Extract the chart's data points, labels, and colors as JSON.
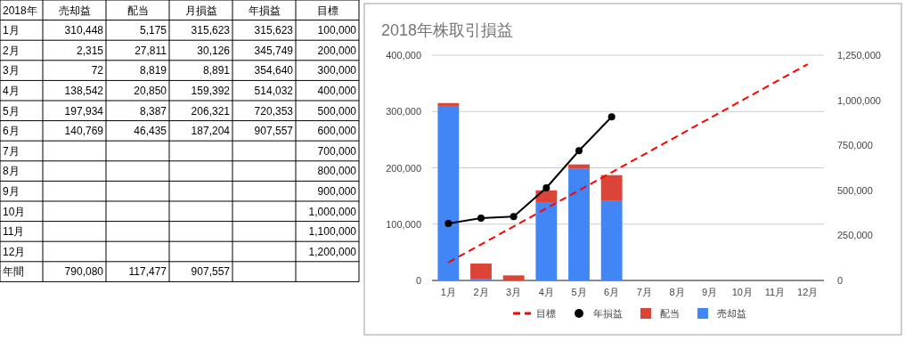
{
  "chart_data": [
    {
      "type": "heatmap",
      "categories": [
        "売却益",
        "配当",
        "月損益",
        "年損益",
        "目標"
      ],
      "y_categories": [
        "1月",
        "2月",
        "3月",
        "4月",
        "5月",
        "6月",
        "7月",
        "8月",
        "9月",
        "10月",
        "11月",
        "12月",
        "年間"
      ],
      "cells": [
        [
          310448,
          5175,
          315623,
          315623,
          100000
        ],
        [
          2315,
          27811,
          30126,
          345749,
          200000
        ],
        [
          72,
          8819,
          8891,
          354640,
          300000
        ],
        [
          138542,
          20850,
          159392,
          514032,
          400000
        ],
        [
          197934,
          8387,
          206321,
          720353,
          500000
        ],
        [
          140769,
          46435,
          187204,
          907557,
          600000
        ],
        [
          null,
          null,
          null,
          null,
          700000
        ],
        [
          null,
          null,
          null,
          null,
          800000
        ],
        [
          null,
          null,
          null,
          null,
          900000
        ],
        [
          null,
          null,
          null,
          null,
          1000000
        ],
        [
          null,
          null,
          null,
          null,
          1100000
        ],
        [
          null,
          null,
          null,
          null,
          1200000
        ],
        [
          790080,
          117477,
          907557,
          null,
          null
        ]
      ],
      "cell_labels": [
        [
          "310,448",
          "5,175",
          "315,623",
          "315,623",
          "100,000"
        ],
        [
          "2,315",
          "27,811",
          "30,126",
          "345,749",
          "200,000"
        ],
        [
          "72",
          "8,819",
          "8,891",
          "354,640",
          "300,000"
        ],
        [
          "138,542",
          "20,850",
          "159,392",
          "514,032",
          "400,000"
        ],
        [
          "197,934",
          "8,387",
          "206,321",
          "720,353",
          "500,000"
        ],
        [
          "140,769",
          "46,435",
          "187,204",
          "907,557",
          "600,000"
        ],
        [
          null,
          null,
          null,
          null,
          "700,000"
        ],
        [
          null,
          null,
          null,
          null,
          "800,000"
        ],
        [
          null,
          null,
          null,
          null,
          "900,000"
        ],
        [
          null,
          null,
          null,
          null,
          "1,000,000"
        ],
        [
          null,
          null,
          null,
          null,
          "1,100,000"
        ],
        [
          null,
          null,
          null,
          null,
          "1,200,000"
        ],
        [
          "790,080",
          "117,477",
          "907,557",
          null,
          null
        ]
      ],
      "annotations": [
        "2018年"
      ]
    },
    {
      "type": "bar",
      "title": "2018年株取引損益",
      "stacked": true,
      "categories": [
        "1月",
        "2月",
        "3月",
        "4月",
        "5月",
        "6月",
        "7月",
        "8月",
        "9月",
        "10月",
        "11月",
        "12月"
      ],
      "series": [
        {
          "name": "売却益",
          "color": "#4285f4",
          "values": [
            310000,
            2000,
            0,
            139000,
            198000,
            141000,
            null,
            null,
            null,
            null,
            null,
            null
          ]
        },
        {
          "name": "配当",
          "color": "#db4437",
          "values": [
            5000,
            28000,
            9000,
            21000,
            8000,
            46000,
            null,
            null,
            null,
            null,
            null,
            null
          ]
        },
        {
          "name": "年損益",
          "type": "line",
          "axis": "y2",
          "color": "#000000",
          "marker": "circle",
          "line_style": "solid",
          "values": [
            316000,
            346000,
            355000,
            514000,
            720000,
            908000,
            null,
            null,
            null,
            null,
            null,
            null
          ]
        },
        {
          "name": "目標",
          "type": "line",
          "axis": "y2",
          "color": "#ff0000",
          "marker": "none",
          "line_style": "dashed",
          "values": [
            100000,
            200000,
            300000,
            400000,
            500000,
            600000,
            700000,
            800000,
            900000,
            1000000,
            1100000,
            1200000
          ]
        }
      ],
      "ylim": [
        0,
        400000
      ],
      "yticks": [
        {
          "value": 0,
          "label": "0"
        },
        {
          "value": 100000,
          "label": "100,000"
        },
        {
          "value": 200000,
          "label": "200,000"
        },
        {
          "value": 300000,
          "label": "300,000"
        },
        {
          "value": 400000,
          "label": "400,000"
        }
      ],
      "y2lim": [
        0,
        1250000
      ],
      "y2ticks": [
        {
          "value": 0,
          "label": "0"
        },
        {
          "value": 250000,
          "label": "250,000"
        },
        {
          "value": 500000,
          "label": "500,000"
        },
        {
          "value": 750000,
          "label": "750,000"
        },
        {
          "value": 1000000,
          "label": "1,000,000"
        },
        {
          "value": 1250000,
          "label": "1,250,000"
        }
      ],
      "grid": "y",
      "legend": "bottom"
    }
  ]
}
